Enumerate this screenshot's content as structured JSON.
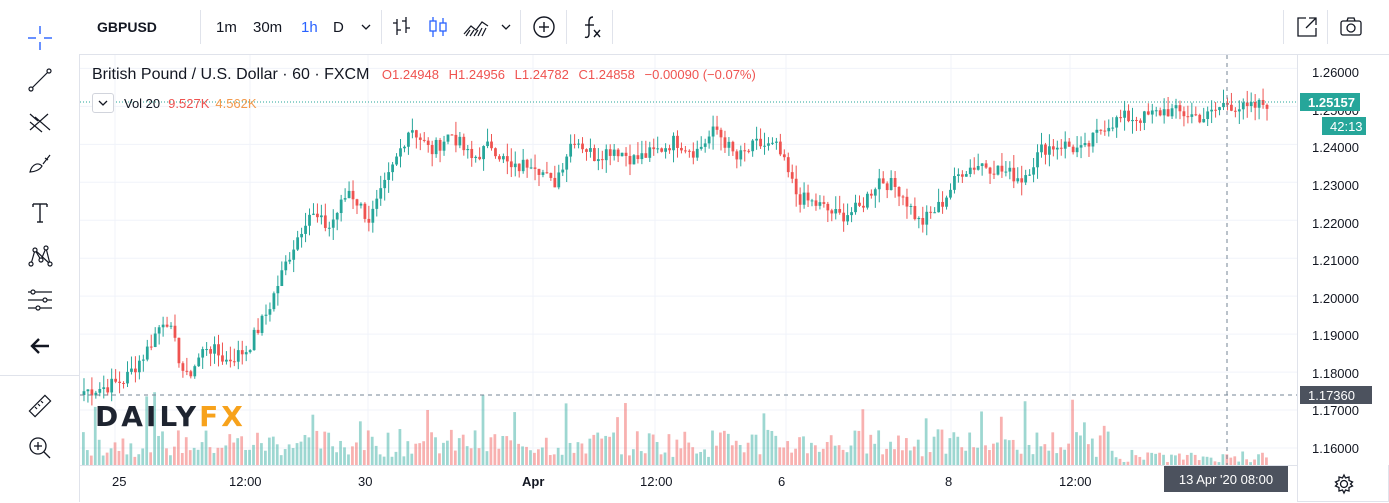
{
  "toolbar_top": {
    "symbol": "GBPUSD",
    "intervals": [
      "1m",
      "30m",
      "1h",
      "D"
    ],
    "active_interval": "1h",
    "indicators_icon": "fx-icon"
  },
  "legend": {
    "title": "British Pound / U.S. Dollar · 60 · FXCM",
    "o_label": "O",
    "o": "1.24948",
    "h_label": "H",
    "h": "1.24956",
    "l_label": "L",
    "l": "1.24782",
    "c_label": "C",
    "c": "1.24858",
    "change": "−0.00090 (−0.07%)",
    "vol_label": "Vol 20",
    "vol_value": "9.527K",
    "vol_ma": "4.562K"
  },
  "price_axis": {
    "labels": [
      "1.26000",
      "1.25000",
      "1.24000",
      "1.23000",
      "1.22000",
      "1.21000",
      "1.20000",
      "1.19000",
      "1.18000",
      "1.17000",
      "1.16000"
    ],
    "last_price": "1.25157",
    "countdown": "42:13",
    "crosshair_price": "1.17360"
  },
  "time_axis": {
    "labels": [
      "25",
      "12:00",
      "30",
      "Apr",
      "12:00",
      "6",
      "8",
      "12:00"
    ],
    "crosshair_time": "13 Apr '20   08:00"
  },
  "watermark": {
    "part1": "DAILY",
    "part2": "FX"
  },
  "colors": {
    "up": "#26a69a",
    "down": "#ef5350",
    "accent": "#2962ff"
  },
  "chart_data": {
    "type": "candlestick",
    "symbol": "GBPUSD",
    "timeframe": "60",
    "ylim": [
      1.155,
      1.263
    ],
    "x_ticks": [
      "25",
      "12:00",
      "30",
      "Apr",
      "12:00",
      "6",
      "8",
      "12:00"
    ],
    "path": [
      1.175,
      1.176,
      1.178,
      1.185,
      1.195,
      1.178,
      1.187,
      1.183,
      1.186,
      1.196,
      1.21,
      1.222,
      1.218,
      1.228,
      1.22,
      1.232,
      1.245,
      1.238,
      1.243,
      1.236,
      1.24,
      1.233,
      1.236,
      1.229,
      1.242,
      1.237,
      1.239,
      1.236,
      1.238,
      1.241,
      1.238,
      1.244,
      1.236,
      1.24,
      1.239,
      1.226,
      1.224,
      1.221,
      1.223,
      1.231,
      1.228,
      1.219,
      1.224,
      1.233,
      1.235,
      1.233,
      1.231,
      1.239,
      1.24,
      1.238,
      1.245,
      1.247,
      1.247,
      1.249,
      1.248,
      1.247,
      1.251,
      1.249,
      1.251
    ],
    "volume_level_note": "volume bars shown beneath price"
  }
}
